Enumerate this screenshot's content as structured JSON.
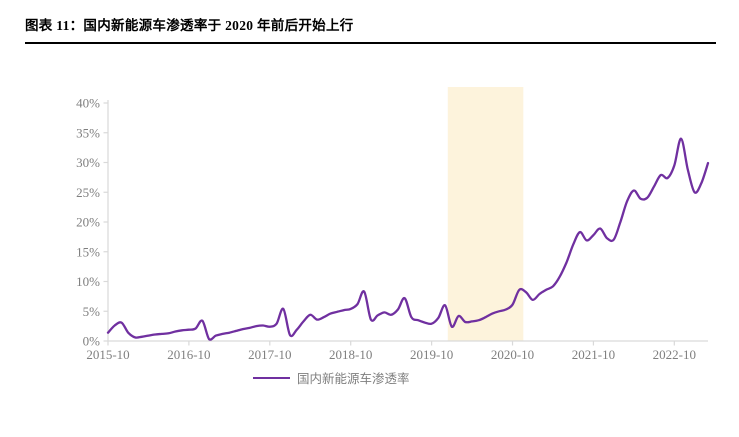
{
  "header": {
    "title": "图表 11：国内新能源车渗透率于 2020 年前后开始上行"
  },
  "colors": {
    "series_line": "#7030A0",
    "highlight_band": "#FDF3DC",
    "axis_line": "#D9D9D9",
    "tick_text": "#7F7F7F",
    "title_rule": "#000000"
  },
  "chart_data": {
    "type": "line",
    "title": "图表 11：国内新能源车渗透率于 2020 年前后开始上行",
    "xlabel": "",
    "ylabel": "",
    "grid": false,
    "legend_position": "bottom",
    "y_ticks": [
      0,
      5,
      10,
      15,
      20,
      25,
      30,
      35,
      40
    ],
    "y_tick_suffix": "%",
    "ylim": [
      0,
      42.7
    ],
    "x_tick_labels": [
      "2015-10",
      "2016-10",
      "2017-10",
      "2018-10",
      "2019-10",
      "2020-10",
      "2021-10",
      "2022-10"
    ],
    "highlight_band": {
      "from": "2019-12",
      "to": "2020-12",
      "color": "#FDF3DC"
    },
    "series": [
      {
        "name": "国内新能源车渗透率",
        "color": "#7030A0",
        "unit": "%",
        "x": [
          "2015-10",
          "2015-11",
          "2015-12",
          "2016-01",
          "2016-02",
          "2016-03",
          "2016-04",
          "2016-05",
          "2016-06",
          "2016-07",
          "2016-08",
          "2016-09",
          "2016-10",
          "2016-11",
          "2016-12",
          "2017-01",
          "2017-02",
          "2017-03",
          "2017-04",
          "2017-05",
          "2017-06",
          "2017-07",
          "2017-08",
          "2017-09",
          "2017-10",
          "2017-11",
          "2017-12",
          "2018-01",
          "2018-02",
          "2018-03",
          "2018-04",
          "2018-05",
          "2018-06",
          "2018-07",
          "2018-08",
          "2018-09",
          "2018-10",
          "2018-11",
          "2018-12",
          "2019-01",
          "2019-02",
          "2019-03",
          "2019-04",
          "2019-05",
          "2019-06",
          "2019-07",
          "2019-08",
          "2019-09",
          "2019-10",
          "2019-11",
          "2019-12",
          "2020-01",
          "2020-02",
          "2020-03",
          "2020-04",
          "2020-05",
          "2020-06",
          "2020-07",
          "2020-08",
          "2020-09",
          "2020-10",
          "2020-11",
          "2020-12",
          "2021-01",
          "2021-02",
          "2021-03",
          "2021-04",
          "2021-05",
          "2021-06",
          "2021-07",
          "2021-08",
          "2021-09",
          "2021-10",
          "2021-11",
          "2021-12",
          "2022-01",
          "2022-02",
          "2022-03",
          "2022-04",
          "2022-05",
          "2022-06",
          "2022-07",
          "2022-08",
          "2022-09",
          "2022-10",
          "2022-11",
          "2022-12",
          "2023-01",
          "2023-02",
          "2023-03"
        ],
        "values": [
          1.4,
          2.6,
          3.1,
          1.4,
          0.6,
          0.7,
          0.9,
          1.1,
          1.2,
          1.3,
          1.6,
          1.8,
          1.9,
          2.1,
          3.4,
          0.3,
          0.9,
          1.2,
          1.4,
          1.7,
          2.0,
          2.2,
          2.5,
          2.6,
          2.4,
          2.9,
          5.4,
          1.0,
          1.9,
          3.3,
          4.4,
          3.6,
          4.0,
          4.6,
          4.9,
          5.2,
          5.4,
          6.2,
          8.3,
          3.6,
          4.3,
          4.8,
          4.4,
          5.3,
          7.2,
          4.0,
          3.5,
          3.1,
          2.9,
          3.9,
          6.0,
          2.4,
          4.2,
          3.2,
          3.3,
          3.5,
          4.0,
          4.6,
          5.0,
          5.3,
          6.1,
          8.6,
          8.2,
          6.9,
          7.9,
          8.6,
          9.2,
          10.8,
          13.2,
          16.2,
          18.3,
          16.9,
          17.8,
          18.9,
          17.3,
          17.0,
          20.0,
          23.5,
          25.3,
          23.9,
          24.1,
          26.0,
          27.9,
          27.4,
          29.5,
          34.0,
          28.8,
          25.0,
          26.5,
          29.9
        ]
      }
    ]
  }
}
